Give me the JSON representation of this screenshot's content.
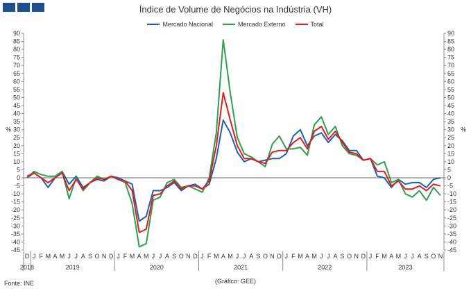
{
  "title": "Índice de Volume de Negócios na Indústria (VH)",
  "source": "Fonte: INE",
  "credit": "(Gráfico: GEE)",
  "chart_data": {
    "type": "line",
    "ylabel_left": "%",
    "ylabel_right": "%",
    "ylim": [
      -45,
      90
    ],
    "yticks": [
      -45,
      -40,
      -35,
      -30,
      -25,
      -20,
      -15,
      -10,
      -5,
      0,
      5,
      10,
      15,
      20,
      25,
      30,
      35,
      40,
      45,
      50,
      55,
      60,
      65,
      70,
      75,
      80,
      85,
      90
    ],
    "ytick_labels": [
      "-45",
      "-40",
      "-35",
      "-30",
      "-25",
      "-20",
      "-15",
      "-10",
      "-5",
      "0",
      "5",
      "10",
      "15",
      "20",
      "25",
      "30",
      "35",
      "40",
      "45",
      "50",
      "55",
      "60",
      "65",
      "70",
      "75",
      "80",
      "85",
      "90"
    ],
    "month_labels": [
      "D",
      "J",
      "F",
      "M",
      "A",
      "M",
      "J",
      "J",
      "A",
      "S",
      "O",
      "N",
      "D",
      "J",
      "F",
      "M",
      "A",
      "M",
      "J",
      "J",
      "A",
      "S",
      "O",
      "N",
      "D",
      "J",
      "F",
      "M",
      "A",
      "M",
      "J",
      "J",
      "A",
      "S",
      "O",
      "N",
      "D",
      "J",
      "F",
      "M",
      "A",
      "M",
      "J",
      "J",
      "A",
      "S",
      "O",
      "N",
      "D",
      "J",
      "F",
      "M",
      "A",
      "M",
      "J",
      "J",
      "A",
      "S",
      "O",
      "N"
    ],
    "years": [
      {
        "label": "2018",
        "from": 0,
        "to": 0
      },
      {
        "label": "2019",
        "from": 1,
        "to": 12
      },
      {
        "label": "2020",
        "from": 13,
        "to": 24
      },
      {
        "label": "2021",
        "from": 25,
        "to": 36
      },
      {
        "label": "2022",
        "from": 37,
        "to": 48
      },
      {
        "label": "2023",
        "from": 49,
        "to": 59
      }
    ],
    "grid": false,
    "legend_position": "top",
    "series": [
      {
        "name": "Mercado Nacional",
        "color": "#1f5fae",
        "values": [
          0,
          3,
          0,
          -6,
          0,
          4,
          -4,
          1,
          -6,
          -3,
          -1,
          -2,
          1,
          0,
          -2,
          -4,
          -27,
          -24,
          -8,
          -8,
          -6,
          -3,
          -8,
          -5,
          -4,
          -7,
          -4,
          12,
          36,
          28,
          16,
          10,
          12,
          10,
          11,
          12,
          12,
          15,
          26,
          30,
          20,
          26,
          28,
          22,
          27,
          23,
          17,
          17,
          11,
          12,
          1,
          0,
          -6,
          -1,
          -4,
          -3,
          -3,
          -6,
          -1,
          0
        ]
      },
      {
        "name": "Mercado Externo",
        "color": "#2e9e4f",
        "values": [
          0,
          4,
          2,
          1,
          1,
          4,
          -13,
          0,
          -8,
          -3,
          1,
          -1,
          1,
          -1,
          -3,
          -16,
          -43,
          -41,
          -14,
          -12,
          -3,
          -1,
          -6,
          -5,
          -7,
          -9,
          0,
          28,
          86,
          53,
          25,
          15,
          13,
          10,
          7,
          21,
          26,
          18,
          18,
          19,
          14,
          33,
          38,
          27,
          32,
          20,
          15,
          14,
          11,
          12,
          8,
          10,
          -3,
          -1,
          -10,
          -12,
          -8,
          -14,
          -6,
          -11
        ]
      },
      {
        "name": "Total",
        "color": "#e01b22",
        "values": [
          1,
          3,
          0,
          -3,
          0,
          3,
          -8,
          -1,
          -7,
          -3,
          0,
          -1,
          1,
          -1,
          -2,
          -8,
          -34,
          -32,
          -11,
          -10,
          -5,
          -2,
          -7,
          -5,
          -5,
          -7,
          -2,
          20,
          53,
          36,
          20,
          12,
          12,
          10,
          9,
          16,
          17,
          17,
          22,
          25,
          18,
          29,
          32,
          24,
          29,
          22,
          16,
          15,
          11,
          12,
          4,
          4,
          -5,
          -2,
          -7,
          -7,
          -5,
          -8,
          -4,
          -5
        ]
      }
    ]
  }
}
